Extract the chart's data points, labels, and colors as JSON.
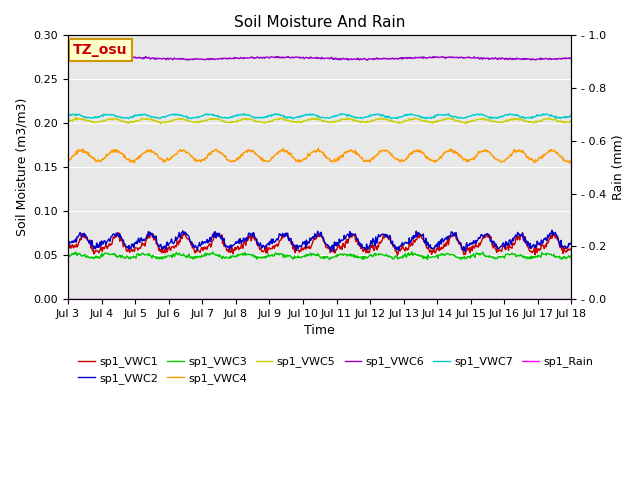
{
  "title": "Soil Moisture And Rain",
  "xlabel": "Time",
  "ylabel_left": "Soil Moisture (m3/m3)",
  "ylabel_right": "Rain (mm)",
  "annotation": "TZ_osu",
  "xlim": [
    0,
    360
  ],
  "ylim_left": [
    0.0,
    0.3
  ],
  "ylim_right": [
    0.0,
    1.0
  ],
  "yticks_left": [
    0.0,
    0.05,
    0.1,
    0.15,
    0.2,
    0.25,
    0.3
  ],
  "yticks_right": [
    0.0,
    0.2,
    0.4,
    0.6,
    0.8,
    1.0
  ],
  "xtick_labels": [
    "Jul 3",
    "Jul 4",
    "Jul 5",
    "Jul 6",
    "Jul 7",
    "Jul 8",
    "Jul 9",
    "Jul 10",
    "Jul 11",
    "Jul 12",
    "Jul 13",
    "Jul 14",
    "Jul 15",
    "Jul 16",
    "Jul 17",
    "Jul 18"
  ],
  "xtick_positions": [
    0,
    24,
    48,
    72,
    96,
    120,
    144,
    168,
    192,
    216,
    240,
    264,
    288,
    312,
    336,
    360
  ],
  "n_points": 721,
  "background_color": "#e8e8e8",
  "colors": {
    "sp1_VWC1": "#cc0000",
    "sp1_VWC2": "#0000cc",
    "sp1_VWC3": "#00cc00",
    "sp1_VWC4": "#ff9900",
    "sp1_VWC5": "#cccc00",
    "sp1_VWC6": "#9900cc",
    "sp1_VWC7": "#00cccc",
    "sp1_Rain": "#ff00ff"
  },
  "line_widths": {
    "sp1_VWC1": 1.0,
    "sp1_VWC2": 1.0,
    "sp1_VWC3": 1.0,
    "sp1_VWC4": 1.0,
    "sp1_VWC5": 1.0,
    "sp1_VWC6": 1.0,
    "sp1_VWC7": 1.0,
    "sp1_Rain": 1.0
  },
  "legend_entries": [
    "sp1_VWC1",
    "sp1_VWC2",
    "sp1_VWC3",
    "sp1_VWC4",
    "sp1_VWC5",
    "sp1_VWC6",
    "sp1_VWC7",
    "sp1_Rain"
  ],
  "grid_color": "white",
  "annotation_bg": "#ffffcc",
  "annotation_border": "#cc9900",
  "annotation_text_color": "#cc0000",
  "annotation_fontsize": 10,
  "fig_width": 6.4,
  "fig_height": 4.8,
  "dpi": 100
}
